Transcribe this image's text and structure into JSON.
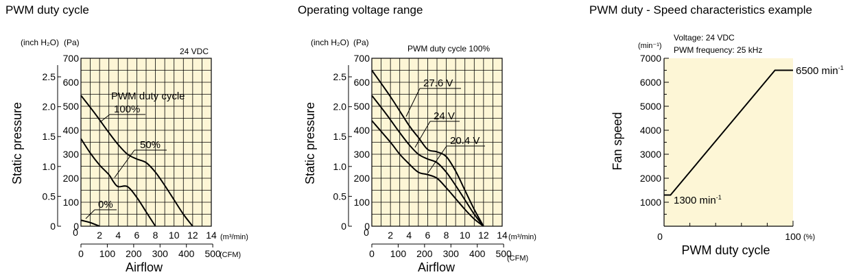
{
  "chart_data": [
    {
      "type": "line",
      "title": "PWM duty cycle",
      "ylabel": "Static pressure",
      "xlabel": "Airflow",
      "y_units": [
        "(inch H₂O)",
        "(Pa)"
      ],
      "x_units": [
        "(m³/min)",
        "(CFM)"
      ],
      "condition": "24 VDC",
      "legend_title": "PWM duty cycle",
      "ylim_pa": [
        0,
        700
      ],
      "xlim_m3min": [
        0,
        14
      ],
      "y_ticks_pa": [
        "0",
        "100",
        "200",
        "300",
        "400",
        "500",
        "600",
        "700"
      ],
      "y_ticks_inh2o": [
        "0",
        "0.5",
        "1.0",
        "1.5",
        "2.0",
        "2.5"
      ],
      "x_ticks_m3min": [
        "0",
        "2",
        "4",
        "6",
        "8",
        "10",
        "12",
        "14"
      ],
      "x_ticks_cfm": [
        "0",
        "100",
        "200",
        "300",
        "400",
        "500"
      ],
      "series": [
        {
          "name": "100%",
          "points": [
            [
              0,
              545
            ],
            [
              1.5,
              470
            ],
            [
              3,
              390
            ],
            [
              4,
              340
            ],
            [
              5,
              300
            ],
            [
              6,
              280
            ],
            [
              7,
              265
            ],
            [
              8,
              225
            ],
            [
              9,
              170
            ],
            [
              10,
              110
            ],
            [
              11,
              50
            ],
            [
              12,
              0
            ]
          ]
        },
        {
          "name": "50%",
          "points": [
            [
              0,
              365
            ],
            [
              1,
              305
            ],
            [
              2,
              255
            ],
            [
              3,
              215
            ],
            [
              3.5,
              185
            ],
            [
              4,
              165
            ],
            [
              5,
              165
            ],
            [
              6,
              120
            ],
            [
              7,
              60
            ],
            [
              8,
              0
            ]
          ]
        },
        {
          "name": "0%",
          "points": [
            [
              0,
              25
            ],
            [
              1,
              15
            ],
            [
              2,
              0
            ]
          ]
        }
      ]
    },
    {
      "type": "line",
      "title": "Operating voltage range",
      "ylabel": "Static pressure",
      "xlabel": "Airflow",
      "y_units": [
        "(inch H₂O)",
        "(Pa)"
      ],
      "x_units": [
        "(m³/min)",
        "(CFM)"
      ],
      "condition": "PWM duty cycle 100%",
      "ylim_pa": [
        0,
        700
      ],
      "xlim_m3min": [
        0,
        14
      ],
      "y_ticks_pa": [
        "0",
        "100",
        "200",
        "300",
        "400",
        "500",
        "600",
        "700"
      ],
      "y_ticks_inh2o": [
        "0",
        "0.5",
        "1.0",
        "1.5",
        "2.0",
        "2.5"
      ],
      "x_ticks_m3min": [
        "0",
        "2",
        "4",
        "6",
        "8",
        "10",
        "12",
        "14"
      ],
      "x_ticks_cfm": [
        "0",
        "100",
        "200",
        "300",
        "400",
        "500"
      ],
      "series": [
        {
          "name": "27.6 V",
          "points": [
            [
              0,
              650
            ],
            [
              2,
              540
            ],
            [
              4,
              420
            ],
            [
              5,
              370
            ],
            [
              6,
              320
            ],
            [
              7,
              310
            ],
            [
              8,
              290
            ],
            [
              9,
              230
            ],
            [
              10,
              150
            ],
            [
              11,
              70
            ],
            [
              12,
              0
            ]
          ]
        },
        {
          "name": "24 V",
          "points": [
            [
              0,
              545
            ],
            [
              1.5,
              470
            ],
            [
              3,
              390
            ],
            [
              4,
              340
            ],
            [
              5,
              300
            ],
            [
              6,
              280
            ],
            [
              7,
              265
            ],
            [
              8,
              225
            ],
            [
              9,
              170
            ],
            [
              10,
              110
            ],
            [
              11,
              50
            ],
            [
              12,
              0
            ]
          ]
        },
        {
          "name": "20.4 V",
          "points": [
            [
              0,
              440
            ],
            [
              2,
              350
            ],
            [
              3,
              300
            ],
            [
              4,
              260
            ],
            [
              5,
              225
            ],
            [
              6,
              215
            ],
            [
              7,
              200
            ],
            [
              8,
              160
            ],
            [
              9,
              115
            ],
            [
              10,
              70
            ],
            [
              11,
              30
            ],
            [
              12,
              0
            ]
          ]
        }
      ]
    },
    {
      "type": "line",
      "title": "PWM duty - Speed characteristics example",
      "ylabel": "Fan speed",
      "xlabel": "PWM duty cycle",
      "y_unit": "(min⁻¹)",
      "x_unit": "(%)",
      "conditions": [
        "Voltage: 24 VDC",
        "PWM frequency: 25 kHz"
      ],
      "ylim": [
        0,
        7000
      ],
      "xlim": [
        0,
        100
      ],
      "y_ticks": [
        "1000",
        "2000",
        "3000",
        "4000",
        "5000",
        "6000",
        "7000"
      ],
      "x_ticks": [
        "0",
        "100"
      ],
      "series": [
        {
          "points": [
            [
              0,
              1300
            ],
            [
              5,
              1300
            ],
            [
              86,
              6500
            ],
            [
              100,
              6500
            ]
          ]
        }
      ],
      "annotations": [
        {
          "base": "6500 min",
          "sup": "-1"
        },
        {
          "base": "1300 min",
          "sup": "-1"
        }
      ]
    }
  ],
  "colors": {
    "plot_bg": "#fdf6d6",
    "grid": "#000000",
    "line": "#000000"
  }
}
